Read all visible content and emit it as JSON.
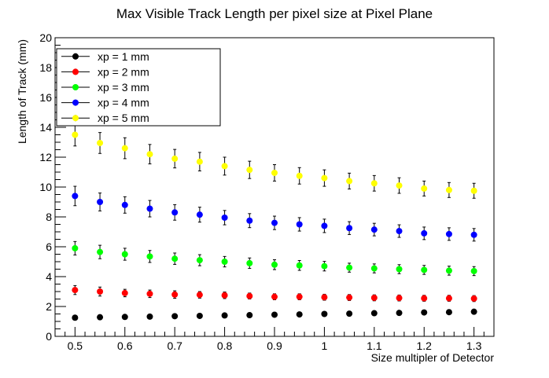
{
  "chart_data": {
    "type": "scatter",
    "title": "Max Visible Track Length per pixel size at Pixel Plane",
    "xlabel": "Size multipler of Detector",
    "ylabel": "Length of Track (mm)",
    "xlim": [
      0.46,
      1.34
    ],
    "ylim": [
      0,
      20
    ],
    "x_ticks": [
      "0.5",
      "0.6",
      "0.7",
      "0.8",
      "0.9",
      "1",
      "1.1",
      "1.2",
      "1.3"
    ],
    "y_ticks": [
      "0",
      "2",
      "4",
      "6",
      "8",
      "10",
      "12",
      "14",
      "16",
      "18",
      "20"
    ],
    "x": [
      0.5,
      0.55,
      0.6,
      0.65,
      0.7,
      0.75,
      0.8,
      0.85,
      0.9,
      0.95,
      1.0,
      1.05,
      1.1,
      1.15,
      1.2,
      1.25,
      1.3
    ],
    "legend_position": "top-left",
    "grid": false,
    "series": [
      {
        "name": "xp = 1 mm",
        "color": "#000000",
        "values": [
          1.25,
          1.28,
          1.3,
          1.32,
          1.35,
          1.37,
          1.4,
          1.42,
          1.45,
          1.47,
          1.5,
          1.52,
          1.55,
          1.57,
          1.6,
          1.62,
          1.65
        ],
        "errors": [
          0.1,
          0.1,
          0.1,
          0.1,
          0.1,
          0.1,
          0.1,
          0.1,
          0.1,
          0.1,
          0.1,
          0.1,
          0.1,
          0.1,
          0.1,
          0.1,
          0.1
        ]
      },
      {
        "name": "xp = 2 mm",
        "color": "#ff0000",
        "values": [
          3.1,
          3.0,
          2.9,
          2.85,
          2.8,
          2.78,
          2.75,
          2.7,
          2.65,
          2.65,
          2.62,
          2.6,
          2.58,
          2.57,
          2.55,
          2.55,
          2.53
        ],
        "errors": [
          0.3,
          0.3,
          0.25,
          0.25,
          0.25,
          0.22,
          0.22,
          0.2,
          0.2,
          0.2,
          0.2,
          0.2,
          0.2,
          0.2,
          0.2,
          0.2,
          0.2
        ]
      },
      {
        "name": "xp = 3 mm",
        "color": "#00ff00",
        "values": [
          5.9,
          5.65,
          5.5,
          5.35,
          5.2,
          5.1,
          5.0,
          4.9,
          4.8,
          4.75,
          4.7,
          4.6,
          4.55,
          4.5,
          4.45,
          4.4,
          4.37
        ],
        "errors": [
          0.45,
          0.45,
          0.4,
          0.4,
          0.38,
          0.37,
          0.35,
          0.35,
          0.33,
          0.33,
          0.32,
          0.3,
          0.3,
          0.3,
          0.3,
          0.3,
          0.3
        ]
      },
      {
        "name": "xp = 4 mm",
        "color": "#0000ff",
        "values": [
          9.4,
          9.0,
          8.8,
          8.55,
          8.3,
          8.15,
          7.95,
          7.75,
          7.6,
          7.5,
          7.4,
          7.25,
          7.15,
          7.05,
          6.9,
          6.85,
          6.8
        ],
        "errors": [
          0.65,
          0.6,
          0.55,
          0.55,
          0.52,
          0.5,
          0.48,
          0.47,
          0.45,
          0.45,
          0.45,
          0.43,
          0.42,
          0.42,
          0.42,
          0.42,
          0.42
        ]
      },
      {
        "name": "xp = 5 mm",
        "color": "#ffff00",
        "values": [
          13.5,
          12.95,
          12.6,
          12.2,
          11.9,
          11.7,
          11.4,
          11.15,
          10.95,
          10.75,
          10.6,
          10.4,
          10.25,
          10.1,
          9.9,
          9.8,
          9.75
        ],
        "errors": [
          0.75,
          0.7,
          0.7,
          0.65,
          0.62,
          0.62,
          0.6,
          0.58,
          0.55,
          0.55,
          0.55,
          0.53,
          0.52,
          0.52,
          0.5,
          0.5,
          0.5
        ]
      }
    ]
  }
}
